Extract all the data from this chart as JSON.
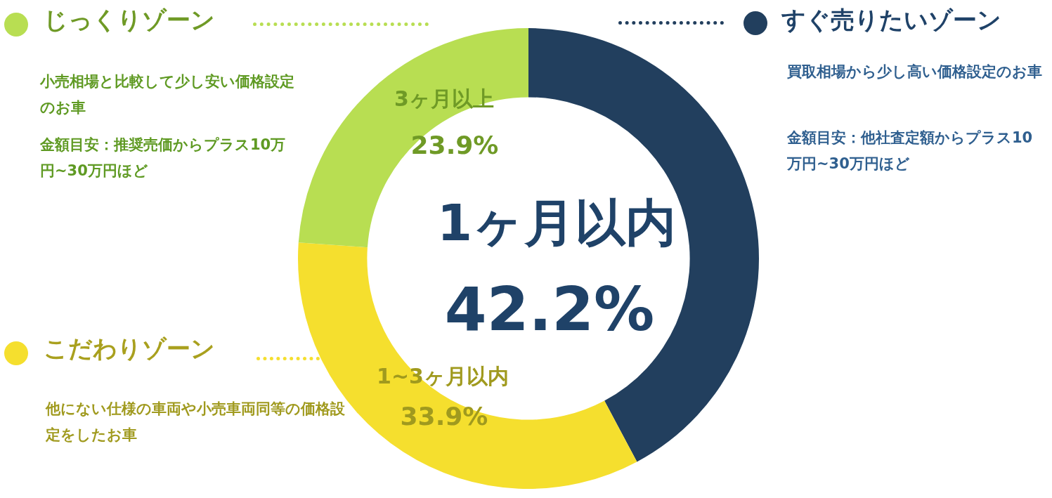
{
  "chart_data": {
    "type": "donut",
    "categories": [
      "1ヶ月以内",
      "1~3ヶ月以内",
      "3ヶ月以上"
    ],
    "values": [
      42.2,
      33.9,
      23.9
    ],
    "colors": [
      "#223f5e",
      "#f5df2e",
      "#b8de52"
    ],
    "value_labels": [
      "42.2%",
      "33.9%",
      "23.9%"
    ],
    "legend": false,
    "annotations": [
      "すぐ売りたいゾーン",
      "買取相場から少し高い価格設定のお車",
      "金額目安：他社査定額からプラス10万円~30万円ほど",
      "じっくりゾーン",
      "小売相場と比較して少し安い価格設定のお車",
      "金額目安：推奨売価からプラス10万円~30万円ほど",
      "こだわりゾーン",
      "他にない仕様の車両や小売車両同等の価格設定をしたお車"
    ]
  }
}
